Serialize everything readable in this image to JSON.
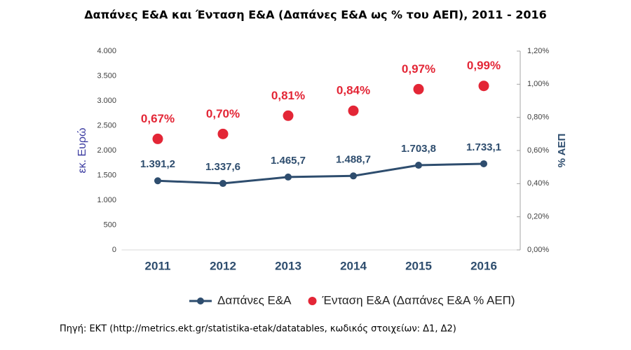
{
  "chart_data": {
    "type": "line",
    "title": "Δαπάνες Ε&Α και Ένταση Ε&Α (Δαπάνες Ε&Α ως % του ΑΕΠ), 2011 - 2016",
    "categories": [
      "2011",
      "2012",
      "2013",
      "2014",
      "2015",
      "2016"
    ],
    "series": [
      {
        "name": "Δαπάνες Ε&Α",
        "type": "line",
        "color": "#2e4d6e",
        "values": [
          1391.2,
          1337.6,
          1465.7,
          1488.7,
          1703.8,
          1733.1
        ],
        "value_labels": [
          "1.391,2",
          "1.337,6",
          "1.465,7",
          "1.488,7",
          "1.703,8",
          "1.733,1"
        ]
      },
      {
        "name": "Ένταση Ε&Α (Δαπάνες Ε&Α % ΑΕΠ)",
        "type": "scatter",
        "axis": "y2",
        "color": "#e32636",
        "values": [
          0.67,
          0.7,
          0.81,
          0.84,
          0.97,
          0.99
        ],
        "value_labels": [
          "0,67%",
          "0,70%",
          "0,81%",
          "0,84%",
          "0,97%",
          "0,99%"
        ]
      }
    ],
    "ylabel": "εκ. Ευρώ",
    "y2label": "% ΑΕΠ",
    "ylim": [
      0,
      4000
    ],
    "yticks": [
      0,
      500,
      {
        "value": 1000,
        "label": "1.000"
      },
      {
        "value": 1500,
        "label": "1.500"
      },
      {
        "value": 2000,
        "label": "2.000"
      },
      {
        "value": 2500,
        "label": "2.500"
      },
      {
        "value": 3000,
        "label": "3.000"
      },
      {
        "value": 3500,
        "label": "3.500"
      },
      {
        "value": 4000,
        "label": "4.000"
      }
    ],
    "y2lim": [
      0,
      1.2
    ],
    "y2ticks": [
      {
        "value": 0,
        "label": "0,00%"
      },
      {
        "value": 0.2,
        "label": "0,20%"
      },
      {
        "value": 0.4,
        "label": "0,40%"
      },
      {
        "value": 0.6,
        "label": "0,60%"
      },
      {
        "value": 0.8,
        "label": "0,80%"
      },
      {
        "value": 1.0,
        "label": "1,00%"
      },
      {
        "value": 1.2,
        "label": "1,20%"
      }
    ],
    "grid": false,
    "legend": "bottom",
    "source": "Πηγή: ΕΚΤ (http://metrics.ekt.gr/statistika-etak/datatables, κωδικός στοιχείων: Δ1, Δ2)"
  }
}
